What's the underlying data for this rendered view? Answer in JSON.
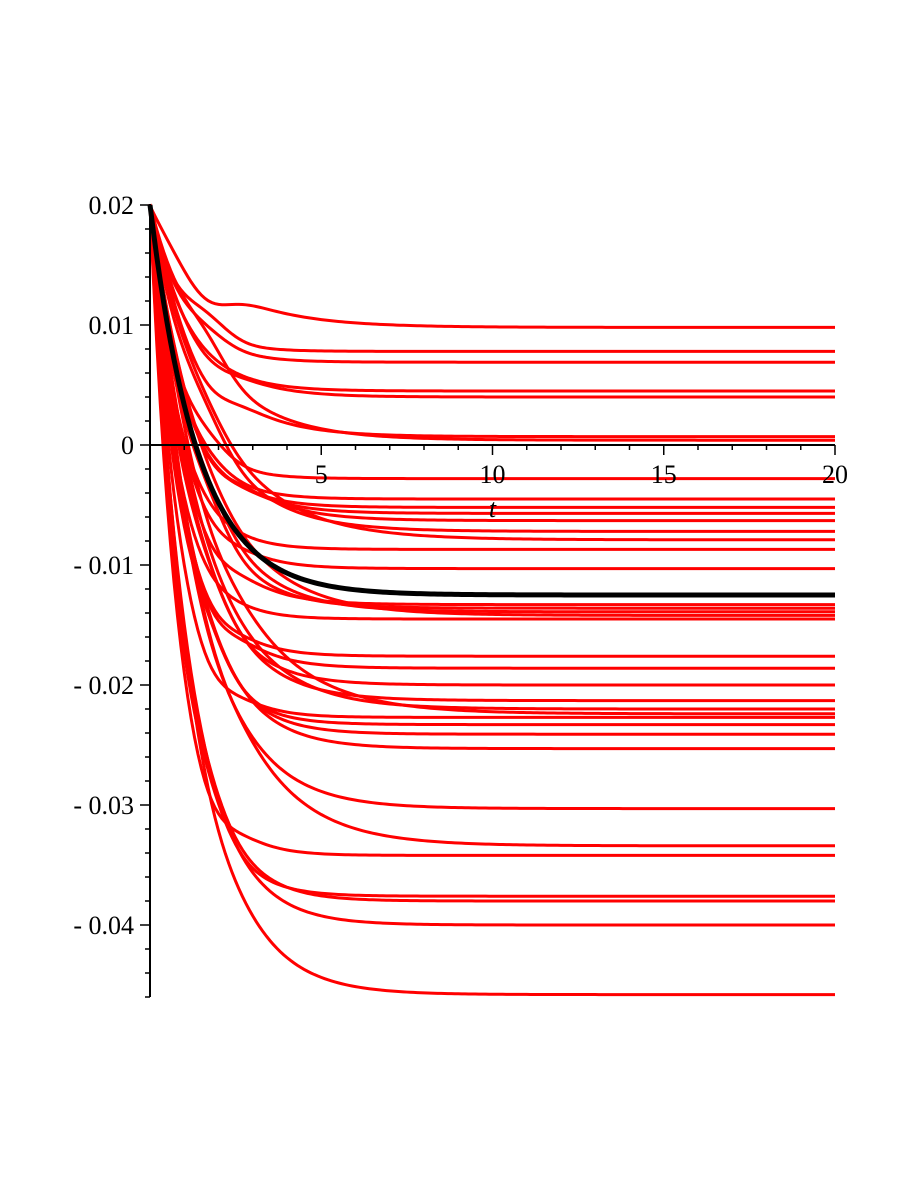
{
  "chart_data": {
    "type": "line",
    "xlabel": "t",
    "ylabel": "",
    "title": "",
    "xlim": [
      0,
      20
    ],
    "ylim": [
      -0.046,
      0.02
    ],
    "x_ticks": [
      5,
      10,
      15,
      20
    ],
    "x_tick_labels": [
      "5",
      "10",
      "15",
      "20"
    ],
    "y_ticks": [
      0.02,
      0.01,
      0,
      -0.01,
      -0.02,
      -0.03,
      -0.04
    ],
    "y_tick_labels": [
      "0.02",
      "0.01",
      "0",
      "- 0.01",
      "- 0.02",
      "- 0.03",
      "- 0.04"
    ],
    "x_minor_step": 1,
    "y_minor_step": 0.002,
    "grid": false,
    "initial_value": 0.02,
    "red_series_color": "#ff0000",
    "highlight_series_color": "#000000",
    "red_series_final_values": [
      0.0098,
      0.0078,
      0.0069,
      0.0045,
      0.004,
      0.0007,
      0.0004,
      -0.0028,
      -0.0045,
      -0.0052,
      -0.0057,
      -0.0063,
      -0.0072,
      -0.0079,
      -0.0087,
      -0.0103,
      -0.0133,
      -0.0136,
      -0.0139,
      -0.0142,
      -0.0145,
      -0.0176,
      -0.0186,
      -0.02,
      -0.0213,
      -0.022,
      -0.0224,
      -0.0227,
      -0.0233,
      -0.0241,
      -0.0253,
      -0.0303,
      -0.0334,
      -0.0342,
      -0.0376,
      -0.038,
      -0.04,
      -0.0458
    ],
    "highlight_series_final_value": -0.0125
  }
}
